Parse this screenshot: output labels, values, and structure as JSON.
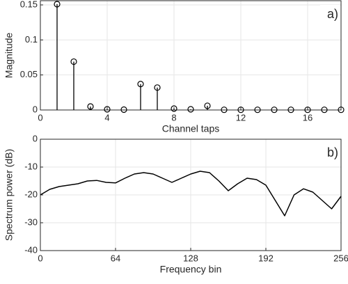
{
  "chart_data": [
    {
      "type": "stem",
      "annotation": "a)",
      "xlabel": "Channel taps",
      "ylabel": "Magnitude",
      "x": [
        1,
        2,
        3,
        4,
        5,
        6,
        7,
        8,
        9,
        10,
        11,
        12,
        13,
        14,
        15,
        16,
        17,
        18
      ],
      "values": [
        0.151,
        0.069,
        0.005,
        0.001,
        0.0005,
        0.037,
        0.032,
        0.002,
        0.001,
        0.006,
        0.0003,
        0.0003,
        0.0003,
        0.0003,
        0.0003,
        0.0003,
        0.0003,
        0.0003
      ],
      "color": "#000000",
      "xlim": [
        0,
        18
      ],
      "xticks": [
        0,
        4,
        8,
        12,
        16
      ],
      "ylim": [
        0,
        0.156
      ],
      "yticks": [
        0,
        0.05,
        0.1,
        0.15
      ],
      "grid": true
    },
    {
      "type": "line",
      "annotation": "b)",
      "xlabel": "Frequency bin",
      "ylabel": "Spectrum power (dB)",
      "x": [
        0,
        8,
        16,
        24,
        32,
        40,
        48,
        56,
        64,
        72,
        80,
        88,
        96,
        104,
        112,
        120,
        128,
        136,
        144,
        152,
        160,
        168,
        176,
        184,
        192,
        200,
        208,
        216,
        224,
        232,
        240,
        248,
        256
      ],
      "values": [
        -20,
        -18,
        -17,
        -16.5,
        -16,
        -15,
        -14.8,
        -15.5,
        -15.7,
        -14,
        -12.5,
        -12,
        -12.5,
        -14,
        -15.5,
        -14,
        -12.5,
        -11.5,
        -12,
        -15,
        -18.5,
        -16,
        -14,
        -14.5,
        -16.5,
        -22,
        -27.5,
        -20,
        -17.8,
        -19,
        -22,
        -25,
        -20.5
      ],
      "color": "#000000",
      "xlim": [
        0,
        256
      ],
      "xticks": [
        0,
        64,
        128,
        192,
        256
      ],
      "ylim": [
        -40,
        0
      ],
      "yticks": [
        -40,
        -30,
        -20,
        -10,
        0
      ],
      "grid": true
    }
  ]
}
